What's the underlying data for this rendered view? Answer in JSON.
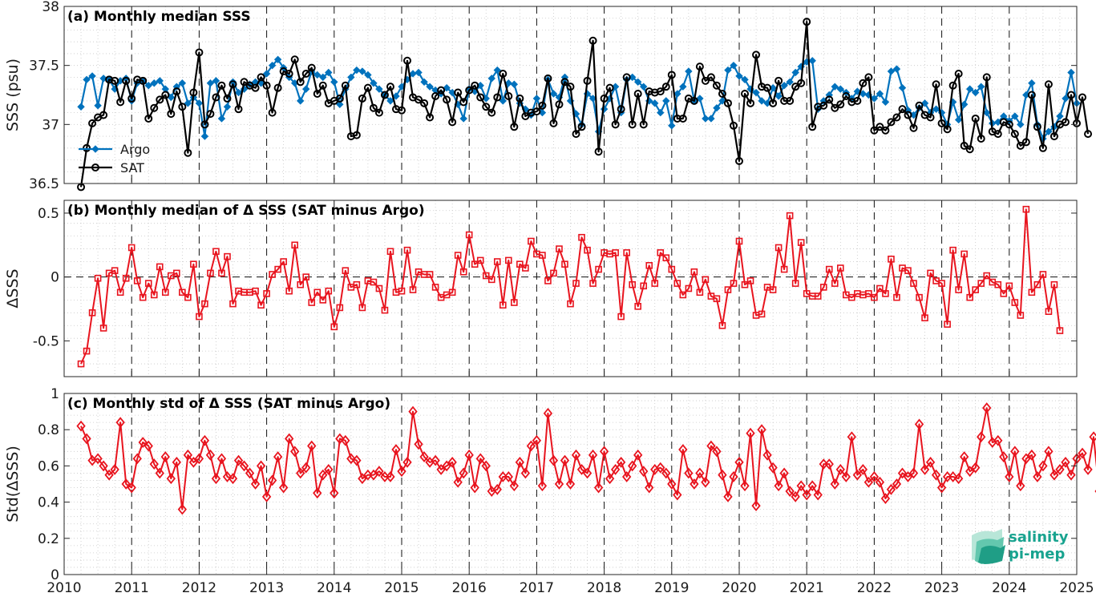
{
  "colors": {
    "argo": "#0072BD",
    "sat": "#000000",
    "delta": "#E8141E",
    "logo": "#18a38f"
  },
  "logo": {
    "line1": "salinity",
    "line2": "pi-mep"
  },
  "chart_data": [
    {
      "type": "line",
      "title": "(a) Monthly median SSS",
      "ylabel": "SSS (psu)",
      "xlabel": "",
      "xlim": [
        2010,
        2025
      ],
      "ylim": [
        36.5,
        38
      ],
      "yticks": [
        36.5,
        37,
        37.5,
        38
      ],
      "ytick_labels": [
        "36.5",
        "37",
        "37.5",
        "38"
      ],
      "grid": "dotted",
      "legend": "inside-left",
      "year_dividers": "dashed vertical lines at each January",
      "series": [
        {
          "name": "Argo",
          "marker": "filled diamond",
          "start": 2010.25,
          "values": [
            37.15,
            37.38,
            37.41,
            37.16,
            37.39,
            37.38,
            37.3,
            37.37,
            37.39,
            37.2,
            37.35,
            37.37,
            37.33,
            37.35,
            37.37,
            37.3,
            37.23,
            37.32,
            37.35,
            37.18,
            37.23,
            37.18,
            36.9,
            37.35,
            37.37,
            37.05,
            37.15,
            37.36,
            37.27,
            37.3,
            37.34,
            37.36,
            37.35,
            37.43,
            37.5,
            37.55,
            37.48,
            37.4,
            37.35,
            37.2,
            37.3,
            37.45,
            37.42,
            37.4,
            37.44,
            37.36,
            37.17,
            37.3,
            37.4,
            37.46,
            37.45,
            37.42,
            37.35,
            37.3,
            37.25,
            37.2,
            37.24,
            37.32,
            37.38,
            37.43,
            37.44,
            37.36,
            37.32,
            37.29,
            37.26,
            37.31,
            37.27,
            37.17,
            37.05,
            37.3,
            37.28,
            37.33,
            37.22,
            37.39,
            37.46,
            37.2,
            37.35,
            37.34,
            37.18,
            37.13,
            37.08,
            37.22,
            37.1,
            37.38,
            37.26,
            37.23,
            37.4,
            37.2,
            37.09,
            37.0,
            37.26,
            37.22,
            36.94,
            37.13,
            37.22,
            37.32,
            37.1,
            37.38,
            37.4,
            37.36,
            37.32,
            37.2,
            37.18,
            37.1,
            37.2,
            36.99,
            37.26,
            37.32,
            37.45,
            37.2,
            37.22,
            37.05,
            37.05,
            37.14,
            37.2,
            37.46,
            37.5,
            37.41,
            37.38,
            37.3,
            37.27,
            37.2,
            37.18,
            37.31,
            37.24,
            37.33,
            37.36,
            37.44,
            37.49,
            37.53,
            37.54,
            37.13,
            37.2,
            37.25,
            37.32,
            37.3,
            37.27,
            37.22,
            37.28,
            37.26,
            37.25,
            37.22,
            37.26,
            37.19,
            37.45,
            37.47,
            37.31,
            37.12,
            37.08,
            37.14,
            37.18,
            37.1,
            37.13,
            37.1,
            37.0,
            37.19,
            37.04,
            37.17,
            37.3,
            37.27,
            37.32,
            37.1,
            37.01,
            37.02,
            37.07,
            37.03,
            37.07,
            37.0,
            37.25,
            37.35,
            37.0,
            36.88,
            36.94,
            36.98,
            37.07,
            37.22,
            37.44,
            37.18
          ]
        },
        {
          "name": "SAT",
          "marker": "open circle",
          "start": 2010.25,
          "values": [
            36.47,
            36.8,
            37.01,
            37.06,
            37.08,
            37.38,
            37.37,
            37.19,
            37.37,
            37.22,
            37.38,
            37.37,
            37.05,
            37.14,
            37.21,
            37.25,
            37.09,
            37.28,
            37.15,
            36.76,
            37.27,
            37.61,
            37.0,
            37.09,
            37.23,
            37.33,
            37.22,
            37.34,
            37.13,
            37.36,
            37.33,
            37.31,
            37.4,
            37.33,
            37.1,
            37.31,
            37.45,
            37.43,
            37.55,
            37.36,
            37.43,
            37.48,
            37.26,
            37.33,
            37.18,
            37.2,
            37.22,
            37.33,
            36.9,
            36.91,
            37.22,
            37.31,
            37.14,
            37.1,
            37.25,
            37.32,
            37.13,
            37.12,
            37.54,
            37.23,
            37.21,
            37.18,
            37.06,
            37.24,
            37.29,
            37.21,
            37.02,
            37.27,
            37.19,
            37.29,
            37.33,
            37.23,
            37.15,
            37.1,
            37.23,
            37.43,
            37.24,
            36.98,
            37.22,
            37.07,
            37.1,
            37.11,
            37.16,
            37.39,
            37.01,
            37.17,
            37.36,
            37.32,
            36.92,
            36.98,
            37.37,
            37.71,
            36.77,
            37.22,
            37.31,
            37.0,
            37.13,
            37.4,
            37.0,
            37.26,
            37.0,
            37.28,
            37.27,
            37.28,
            37.32,
            37.42,
            37.05,
            37.05,
            37.22,
            37.2,
            37.49,
            37.37,
            37.4,
            37.33,
            37.26,
            37.18,
            36.99,
            36.69,
            37.26,
            37.18,
            37.59,
            37.32,
            37.31,
            37.18,
            37.37,
            37.2,
            37.2,
            37.32,
            37.35,
            37.87,
            36.98,
            37.15,
            37.16,
            37.21,
            37.14,
            37.17,
            37.24,
            37.19,
            37.2,
            37.35,
            37.4,
            36.95,
            36.98,
            36.95,
            37.02,
            37.06,
            37.13,
            37.08,
            36.97,
            37.16,
            37.08,
            37.06,
            37.34,
            37.01,
            36.96,
            37.33,
            37.43,
            36.82,
            36.79,
            37.05,
            36.88,
            37.4,
            36.94,
            36.92,
            37.02,
            37.0,
            36.92,
            36.82,
            36.85,
            37.25,
            36.98,
            36.8,
            37.34,
            36.9,
            37.0,
            37.02,
            37.25,
            37.01,
            37.23,
            36.92
          ]
        }
      ]
    },
    {
      "type": "line",
      "title": "(b) Monthly median of Δ SSS (SAT minus Argo)",
      "ylabel": "ΔSSS",
      "xlabel": "",
      "xlim": [
        2010,
        2025
      ],
      "ylim": [
        -0.78,
        0.6
      ],
      "yticks": [
        -0.5,
        0,
        0.5
      ],
      "ytick_labels": [
        "-0.5",
        "0",
        "0.5"
      ],
      "grid": "dotted",
      "zero_line": "dashed horizontal",
      "series": [
        {
          "name": "",
          "marker": "open square",
          "start": 2010.25,
          "values": [
            -0.68,
            -0.58,
            -0.28,
            -0.01,
            -0.4,
            0.03,
            0.05,
            -0.12,
            -0.01,
            0.23,
            -0.03,
            -0.16,
            -0.05,
            -0.14,
            0.08,
            -0.12,
            0.01,
            0.03,
            -0.12,
            -0.16,
            0.1,
            -0.31,
            -0.21,
            0.03,
            0.2,
            0.03,
            0.16,
            -0.21,
            -0.11,
            -0.12,
            -0.12,
            -0.11,
            -0.22,
            -0.13,
            0.02,
            0.06,
            0.12,
            -0.11,
            0.25,
            -0.06,
            0.0,
            -0.2,
            -0.12,
            -0.18,
            -0.11,
            -0.39,
            -0.24,
            0.05,
            -0.08,
            -0.06,
            -0.24,
            -0.03,
            -0.04,
            -0.09,
            -0.26,
            0.2,
            -0.12,
            -0.11,
            0.21,
            -0.1,
            0.04,
            0.02,
            0.02,
            -0.08,
            -0.16,
            -0.14,
            -0.12,
            0.17,
            0.04,
            0.33,
            0.1,
            0.13,
            0.01,
            -0.02,
            0.12,
            -0.22,
            0.13,
            -0.2,
            0.1,
            0.07,
            0.28,
            0.18,
            0.17,
            -0.03,
            0.03,
            0.22,
            0.1,
            -0.21,
            -0.05,
            0.31,
            0.21,
            -0.05,
            0.06,
            0.19,
            0.18,
            0.19,
            -0.31,
            0.19,
            -0.06,
            -0.23,
            -0.07,
            0.09,
            -0.05,
            0.19,
            0.15,
            0.06,
            -0.05,
            -0.14,
            -0.09,
            0.04,
            -0.12,
            -0.02,
            -0.15,
            -0.17,
            -0.38,
            -0.1,
            -0.05,
            0.28,
            -0.06,
            -0.03,
            -0.3,
            -0.29,
            -0.08,
            -0.1,
            0.23,
            0.06,
            0.48,
            -0.05,
            0.27,
            -0.13,
            -0.15,
            -0.15,
            -0.08,
            0.06,
            -0.05,
            0.07,
            -0.14,
            -0.16,
            -0.13,
            -0.14,
            -0.13,
            -0.16,
            -0.09,
            -0.13,
            0.14,
            -0.16,
            0.07,
            0.05,
            -0.05,
            -0.16,
            -0.32,
            0.03,
            -0.03,
            -0.05,
            -0.37,
            0.21,
            -0.1,
            0.18,
            -0.16,
            -0.1,
            -0.05,
            0.01,
            -0.04,
            -0.06,
            -0.13,
            -0.07,
            -0.2,
            -0.3,
            0.53,
            -0.12,
            -0.06,
            0.02,
            -0.27,
            -0.06,
            -0.42
          ]
        }
      ]
    },
    {
      "type": "line",
      "title": "(c) Monthly std of Δ SSS (SAT minus Argo)",
      "ylabel": "Std(ΔSSS)",
      "xlabel": "",
      "xlim": [
        2010,
        2025
      ],
      "ylim": [
        0,
        1
      ],
      "yticks": [
        0,
        0.2,
        0.4,
        0.6,
        0.8,
        1
      ],
      "ytick_labels": [
        "0",
        "0.2",
        "0.4",
        "0.6",
        "0.8",
        "1"
      ],
      "xticks": [
        2010,
        2011,
        2012,
        2013,
        2014,
        2015,
        2016,
        2017,
        2018,
        2019,
        2020,
        2021,
        2022,
        2023,
        2024,
        2025
      ],
      "xtick_labels": [
        "2010",
        "2011",
        "2012",
        "2013",
        "2014",
        "2015",
        "2016",
        "2017",
        "2018",
        "2019",
        "2020",
        "2021",
        "2022",
        "2023",
        "2024",
        "2025"
      ],
      "grid": "dotted",
      "series": [
        {
          "name": "",
          "marker": "open diamond",
          "start": 2010.25,
          "values": [
            0.82,
            0.75,
            0.63,
            0.64,
            0.6,
            0.55,
            0.58,
            0.84,
            0.5,
            0.48,
            0.64,
            0.73,
            0.71,
            0.61,
            0.56,
            0.65,
            0.53,
            0.62,
            0.36,
            0.66,
            0.62,
            0.64,
            0.74,
            0.66,
            0.53,
            0.64,
            0.54,
            0.53,
            0.63,
            0.6,
            0.56,
            0.5,
            0.6,
            0.43,
            0.52,
            0.65,
            0.48,
            0.75,
            0.68,
            0.56,
            0.59,
            0.71,
            0.45,
            0.55,
            0.58,
            0.45,
            0.75,
            0.74,
            0.64,
            0.63,
            0.53,
            0.55,
            0.55,
            0.57,
            0.54,
            0.54,
            0.69,
            0.57,
            0.62,
            0.9,
            0.72,
            0.65,
            0.62,
            0.63,
            0.58,
            0.6,
            0.62,
            0.51,
            0.56,
            0.66,
            0.48,
            0.64,
            0.6,
            0.46,
            0.47,
            0.54,
            0.54,
            0.49,
            0.62,
            0.56,
            0.71,
            0.74,
            0.49,
            0.89,
            0.63,
            0.5,
            0.63,
            0.5,
            0.66,
            0.58,
            0.56,
            0.66,
            0.48,
            0.68,
            0.53,
            0.58,
            0.62,
            0.54,
            0.6,
            0.66,
            0.57,
            0.48,
            0.58,
            0.59,
            0.56,
            0.5,
            0.44,
            0.69,
            0.56,
            0.5,
            0.56,
            0.51,
            0.71,
            0.68,
            0.55,
            0.43,
            0.54,
            0.62,
            0.49,
            0.78,
            0.38,
            0.8,
            0.66,
            0.59,
            0.49,
            0.56,
            0.46,
            0.43,
            0.49,
            0.44,
            0.49,
            0.44,
            0.61,
            0.61,
            0.5,
            0.58,
            0.54,
            0.76,
            0.55,
            0.58,
            0.51,
            0.54,
            0.51,
            0.42,
            0.47,
            0.5,
            0.56,
            0.54,
            0.56,
            0.83,
            0.58,
            0.62,
            0.55,
            0.48,
            0.54,
            0.54,
            0.53,
            0.65,
            0.57,
            0.59,
            0.76,
            0.92,
            0.73,
            0.74,
            0.65,
            0.54,
            0.68,
            0.49,
            0.64,
            0.66,
            0.54,
            0.6,
            0.68,
            0.55,
            0.58,
            0.62,
            0.55,
            0.64,
            0.67,
            0.58,
            0.76,
            0.46,
            0.5
          ]
        }
      ]
    }
  ]
}
